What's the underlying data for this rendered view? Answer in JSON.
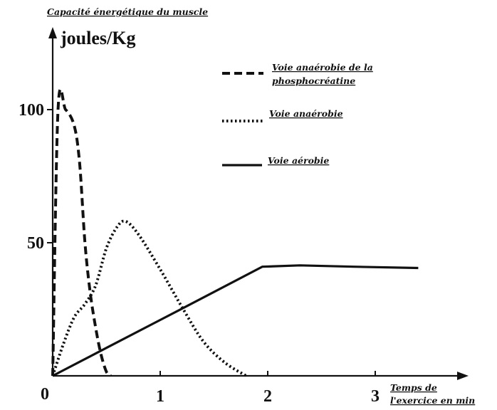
{
  "chart_data": {
    "type": "line",
    "title": "Capacité énergétique du muscle",
    "ylabel": "joules/Kg",
    "xlabel_line1": "Temps de",
    "xlabel_line2": "l'exercice en min",
    "origin_label": "0",
    "xlim": [
      0,
      3.95
    ],
    "ylim": [
      0,
      104
    ],
    "x_ticks": [
      "1",
      "2",
      "3"
    ],
    "y_ticks": [
      "100",
      "50"
    ],
    "legend_position": "top-right",
    "series": [
      {
        "name": "Voie anaérobie de la phosphocréatine",
        "style": "dashed",
        "points": [
          [
            0,
            0
          ],
          [
            0.05,
            100
          ],
          [
            0.12,
            100
          ],
          [
            0.2,
            94
          ],
          [
            0.25,
            80
          ],
          [
            0.3,
            50
          ],
          [
            0.35,
            31
          ],
          [
            0.4,
            18
          ],
          [
            0.45,
            8
          ],
          [
            0.5,
            1.5
          ],
          [
            0.54,
            0
          ]
        ]
      },
      {
        "name": "Voie anaérobie",
        "style": "dotted",
        "points": [
          [
            0,
            0
          ],
          [
            0.1,
            12
          ],
          [
            0.2,
            22
          ],
          [
            0.3,
            27
          ],
          [
            0.4,
            34
          ],
          [
            0.5,
            48
          ],
          [
            0.6,
            56
          ],
          [
            0.68,
            58
          ],
          [
            0.8,
            53
          ],
          [
            1.0,
            40
          ],
          [
            1.2,
            26
          ],
          [
            1.4,
            13
          ],
          [
            1.6,
            5
          ],
          [
            1.8,
            0
          ]
        ]
      },
      {
        "name": "Voie aérobie",
        "style": "solid",
        "points": [
          [
            0,
            0
          ],
          [
            0.5,
            10.5
          ],
          [
            1.0,
            21
          ],
          [
            1.5,
            31.5
          ],
          [
            1.95,
            41
          ],
          [
            2.3,
            41.5
          ],
          [
            2.8,
            41
          ],
          [
            3.4,
            40.5
          ]
        ]
      }
    ]
  }
}
